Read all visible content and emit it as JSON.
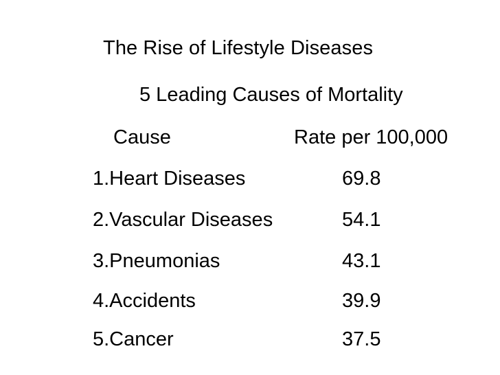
{
  "slide": {
    "title": "The Rise of Lifestyle Diseases",
    "subtitle": "5 Leading Causes of Mortality",
    "table": {
      "headers": [
        "Cause",
        "Rate per 100,000"
      ],
      "rows": [
        {
          "cause": "1.Heart Diseases",
          "rate": "69.8"
        },
        {
          "cause": "2.Vascular Diseases",
          "rate": "54.1"
        },
        {
          "cause": "3.Pneumonias",
          "rate": "43.1"
        },
        {
          "cause": "4.Accidents",
          "rate": "39.9"
        },
        {
          "cause": "5.Cancer",
          "rate": "37.5"
        }
      ]
    }
  }
}
